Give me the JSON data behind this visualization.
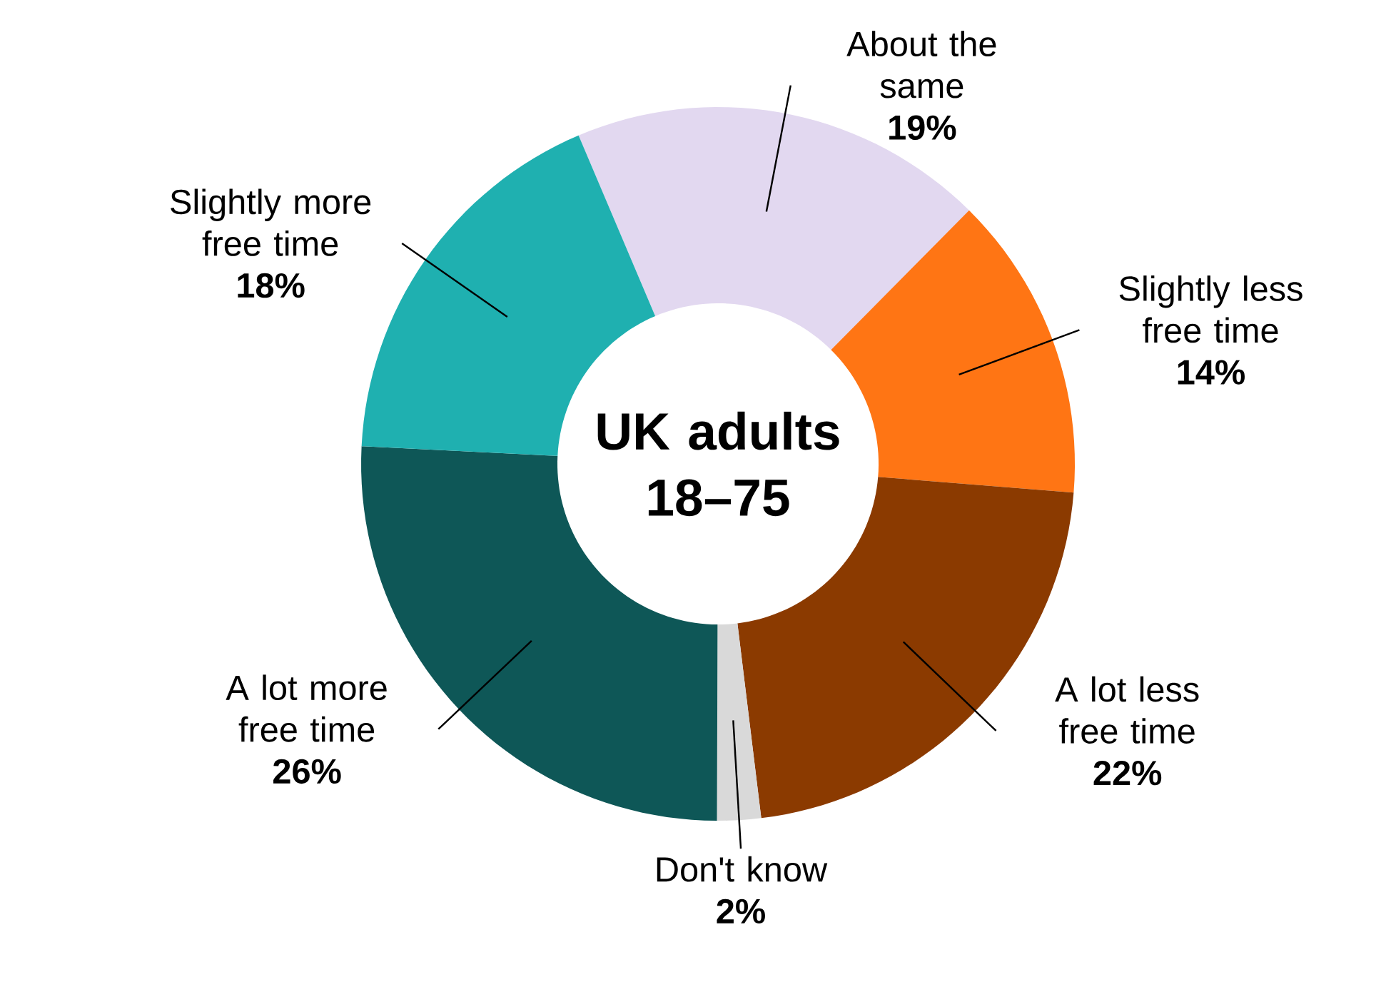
{
  "chart_data": {
    "type": "donut",
    "title": "UK adults 18–75",
    "categories": [
      "About the same",
      "Slightly less free time",
      "A lot less free time",
      "Don't know",
      "A lot more free time",
      "Slightly more free time"
    ],
    "values": [
      19,
      14,
      22,
      2,
      26,
      18
    ],
    "value_labels": [
      "19%",
      "14%",
      "22%",
      "2%",
      "26%",
      "18%"
    ],
    "colors": [
      "#e2d8f0",
      "#ff7514",
      "#8b3a00",
      "#d9d9d9",
      "#0e5757",
      "#1fb0b0"
    ]
  }
}
